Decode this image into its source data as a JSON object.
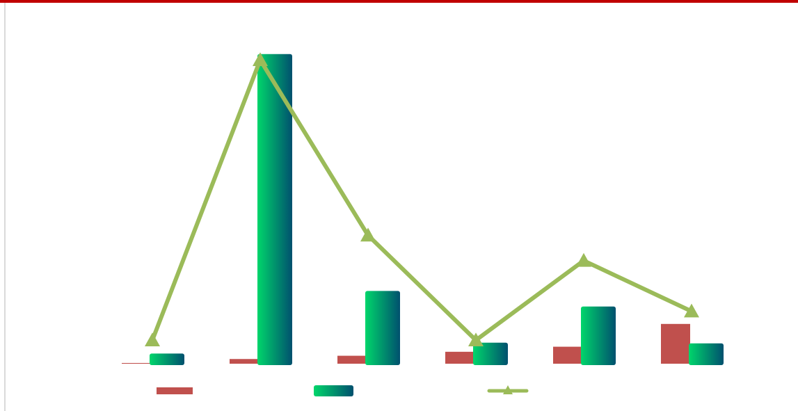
{
  "colors": {
    "frame_top": "#c00000",
    "frame_left": "#d9d9d9",
    "series1": "#c0504d",
    "series2_start": "#00d66b",
    "series2_end": "#00506e",
    "series3": "#9bbb59"
  },
  "chart_data": {
    "type": "bar",
    "categories": [
      "",
      "",
      "",
      "",
      "",
      ""
    ],
    "series": [
      {
        "kind": "bar",
        "values": [
          0.2,
          1.3,
          2.2,
          3.3,
          4.7,
          11.0
        ]
      },
      {
        "kind": "bar",
        "values": [
          3.2,
          86.0,
          20.5,
          6.2,
          16.2,
          6.0
        ]
      },
      {
        "kind": "line",
        "marker": "triangle",
        "values": [
          6.5,
          84.0,
          35.5,
          6.5,
          28.5,
          14.5
        ]
      }
    ],
    "ylim": [
      0,
      90
    ],
    "grid": false,
    "legend": "bottom"
  }
}
